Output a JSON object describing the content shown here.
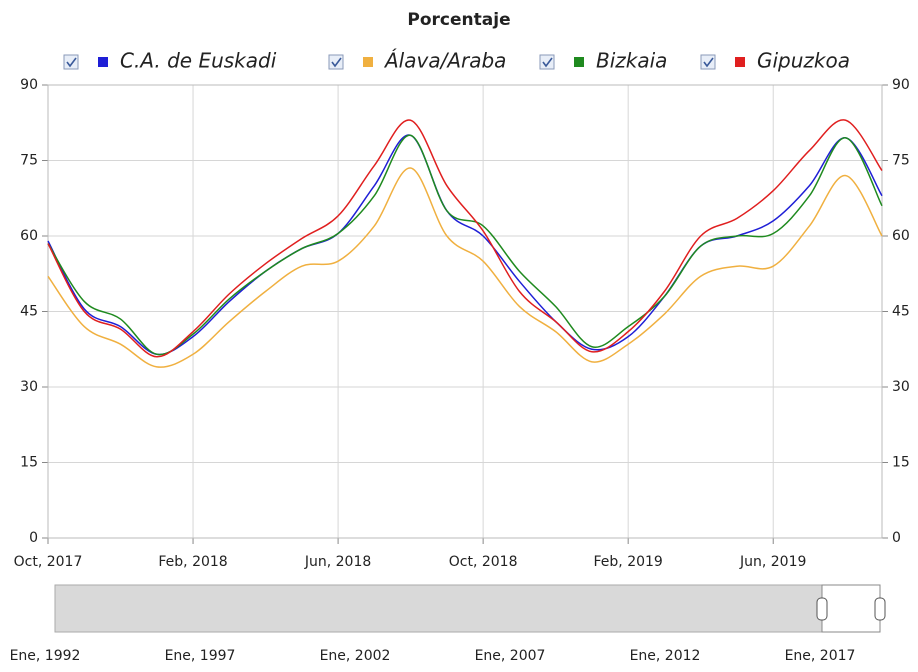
{
  "chart_data": {
    "type": "line",
    "subtitle": "Porcentaje",
    "x": [
      "2017-10",
      "2017-11",
      "2017-12",
      "2018-01",
      "2018-02",
      "2018-03",
      "2018-04",
      "2018-05",
      "2018-06",
      "2018-07",
      "2018-08",
      "2018-09",
      "2018-10",
      "2018-11",
      "2018-12",
      "2019-01",
      "2019-02",
      "2019-03",
      "2019-04",
      "2019-05",
      "2019-06",
      "2019-07",
      "2019-08",
      "2019-09"
    ],
    "xlim": [
      "2017-10",
      "2019-09"
    ],
    "xticks": [
      {
        "value": "2017-10",
        "label": "Oct, 2017"
      },
      {
        "value": "2018-02",
        "label": "Feb, 2018"
      },
      {
        "value": "2018-06",
        "label": "Jun, 2018"
      },
      {
        "value": "2018-10",
        "label": "Oct, 2018"
      },
      {
        "value": "2019-02",
        "label": "Feb, 2019"
      },
      {
        "value": "2019-06",
        "label": "Jun, 2019"
      }
    ],
    "ylim": [
      0,
      90
    ],
    "yticks": [
      0,
      15,
      30,
      45,
      60,
      75,
      90
    ],
    "y2lim": [
      0,
      90
    ],
    "y2ticks": [
      0,
      15,
      30,
      45,
      60,
      75,
      90
    ],
    "grid": true,
    "series": [
      {
        "name": "C.A. de Euskadi",
        "color": "#1f1fd6",
        "values": [
          59,
          45.5,
          42,
          36.5,
          40,
          47,
          53,
          57.5,
          60.5,
          70,
          80,
          65,
          60,
          51,
          43,
          37.5,
          40,
          48,
          58,
          60,
          63,
          70,
          79.5,
          68
        ]
      },
      {
        "name": "Álava/Araba",
        "color": "#f0b040",
        "values": [
          52,
          42,
          38.5,
          34,
          36.5,
          43,
          49,
          54,
          55,
          62,
          73.5,
          60,
          55,
          46,
          41,
          35,
          38.5,
          44.5,
          52,
          54,
          54,
          62,
          72,
          60
        ]
      },
      {
        "name": "Bizkaia",
        "color": "#1f8a1f",
        "values": [
          58.5,
          47,
          43.5,
          36.5,
          40.5,
          47.5,
          53,
          57.5,
          60.5,
          68,
          80,
          65,
          62,
          53,
          46,
          38,
          42,
          48,
          58,
          60,
          60.5,
          68,
          79.5,
          66
        ]
      },
      {
        "name": "Gipuzkoa",
        "color": "#e01f1f",
        "values": [
          58.5,
          45,
          41.5,
          36,
          41,
          48.5,
          54.5,
          59.5,
          64,
          74,
          83,
          70,
          61,
          49,
          43,
          37,
          41,
          49,
          60,
          63.5,
          69,
          77,
          83,
          73
        ]
      }
    ]
  },
  "navigator": {
    "labels": [
      "Ene, 1992",
      "Ene, 1997",
      "Ene, 2002",
      "Ene, 2007",
      "Ene, 2012",
      "Ene, 2017"
    ]
  }
}
